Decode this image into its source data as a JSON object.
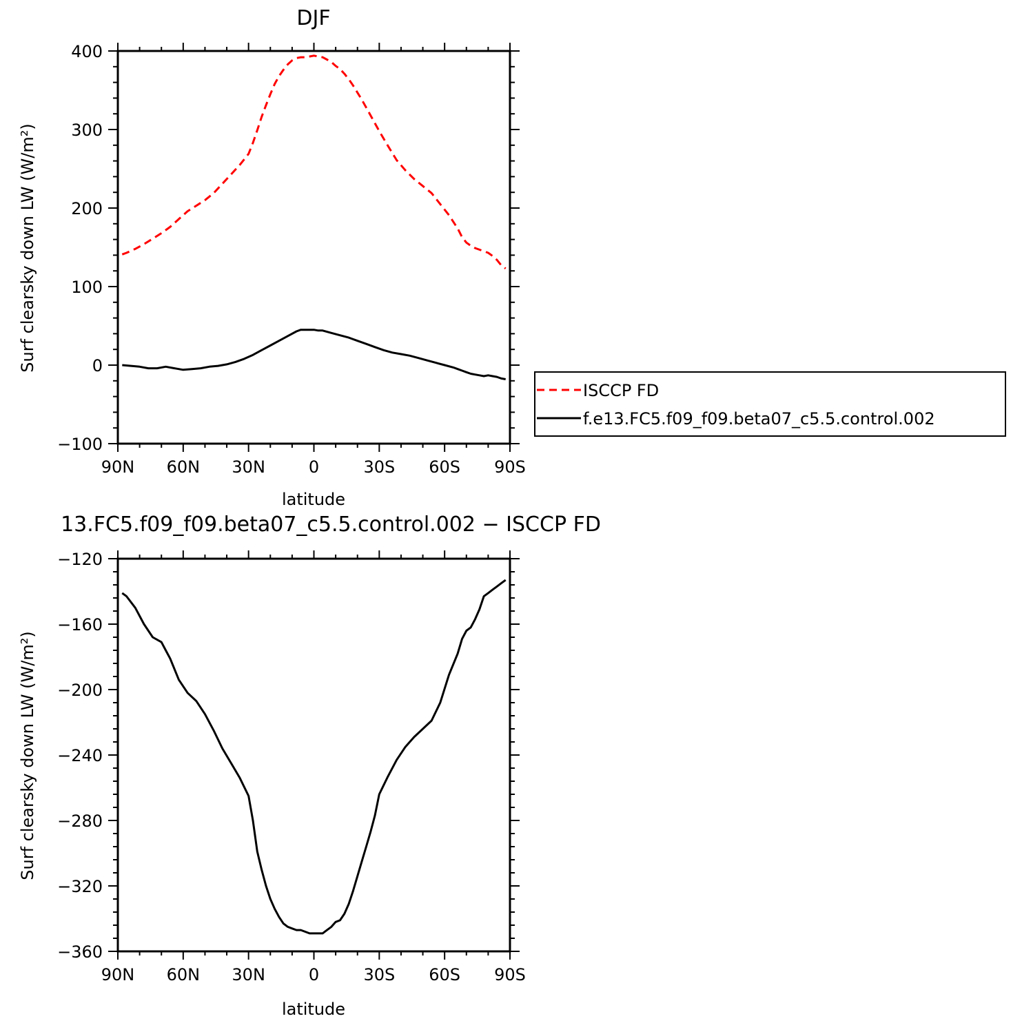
{
  "chart_data": [
    {
      "type": "line",
      "title": "DJF",
      "xlabel": "latitude",
      "ylabel": "Surf clearsky down LW (W/m²)",
      "x_tick_labels": [
        "90N",
        "60N",
        "30N",
        "0",
        "30S",
        "60S",
        "90S"
      ],
      "x_tick_values": [
        90,
        60,
        30,
        0,
        -30,
        -60,
        -90
      ],
      "xlim": [
        90,
        -90
      ],
      "ylim": [
        -100,
        400
      ],
      "y_ticks": [
        400,
        300,
        200,
        100,
        0,
        -100
      ],
      "legend_position": "right",
      "series": [
        {
          "name": "ISCCP FD",
          "color": "#ff0000",
          "style": "dashed",
          "x": [
            88,
            86,
            82,
            78,
            74,
            70,
            66,
            62,
            58,
            54,
            50,
            46,
            42,
            38,
            34,
            30,
            28,
            26,
            24,
            22,
            20,
            18,
            16,
            14,
            12,
            10,
            8,
            6,
            4,
            2,
            0,
            -2,
            -4,
            -6,
            -8,
            -10,
            -12,
            -14,
            -16,
            -18,
            -20,
            -22,
            -24,
            -26,
            -28,
            -30,
            -34,
            -38,
            -42,
            -46,
            -50,
            -54,
            -58,
            -62,
            -66,
            -68,
            -70,
            -72,
            -74,
            -76,
            -78,
            -80,
            -82,
            -84,
            -86,
            -88
          ],
          "values": [
            141,
            143,
            148,
            154,
            161,
            168,
            176,
            186,
            196,
            203,
            210,
            219,
            231,
            243,
            255,
            269,
            283,
            299,
            316,
            331,
            345,
            358,
            368,
            376,
            383,
            388,
            391,
            392,
            392,
            393,
            394,
            393,
            392,
            389,
            386,
            381,
            377,
            371,
            364,
            356,
            347,
            338,
            328,
            318,
            308,
            298,
            279,
            261,
            248,
            237,
            228,
            219,
            205,
            191,
            174,
            163,
            156,
            152,
            149,
            147,
            145,
            143,
            139,
            134,
            127,
            123
          ]
        },
        {
          "name": "f.e13.FC5.f09_f09.beta07_c5.5.control.002",
          "color": "#000000",
          "style": "solid",
          "x": [
            88,
            84,
            80,
            76,
            72,
            68,
            64,
            60,
            56,
            52,
            48,
            44,
            40,
            36,
            32,
            28,
            24,
            20,
            16,
            12,
            8,
            6,
            4,
            2,
            0,
            -2,
            -4,
            -8,
            -12,
            -16,
            -20,
            -24,
            -28,
            -32,
            -36,
            -40,
            -44,
            -48,
            -52,
            -56,
            -60,
            -64,
            -66,
            -68,
            -70,
            -72,
            -74,
            -76,
            -78,
            -80,
            -82,
            -84,
            -86,
            -88
          ],
          "values": [
            0,
            -1,
            -2,
            -4,
            -4,
            -2,
            -4,
            -6,
            -5,
            -4,
            -2,
            -1,
            1,
            4,
            8,
            13,
            19,
            25,
            31,
            37,
            43,
            45,
            45,
            45,
            45,
            44,
            44,
            41,
            38,
            35,
            31,
            27,
            23,
            19,
            16,
            14,
            12,
            9,
            6,
            3,
            0,
            -3,
            -5,
            -7,
            -9,
            -11,
            -12,
            -13,
            -14,
            -13,
            -14,
            -15,
            -17,
            -18
          ]
        }
      ]
    },
    {
      "type": "line",
      "title": "13.FC5.f09_f09.beta07_c5.5.control.002 − ISCCP FD",
      "xlabel": "latitude",
      "ylabel": "Surf clearsky down LW (W/m²)",
      "x_tick_labels": [
        "90N",
        "60N",
        "30N",
        "0",
        "30S",
        "60S",
        "90S"
      ],
      "x_tick_values": [
        90,
        60,
        30,
        0,
        -30,
        -60,
        -90
      ],
      "xlim": [
        90,
        -90
      ],
      "ylim": [
        -360,
        -120
      ],
      "y_ticks": [
        -120,
        -160,
        -200,
        -240,
        -280,
        -320,
        -360
      ],
      "series": [
        {
          "color": "#000000",
          "style": "solid",
          "x": [
            88,
            86,
            82,
            78,
            74,
            70,
            68,
            66,
            62,
            58,
            54,
            50,
            46,
            42,
            38,
            34,
            30,
            28,
            26,
            24,
            22,
            20,
            18,
            16,
            14,
            12,
            10,
            8,
            6,
            4,
            2,
            0,
            -2,
            -4,
            -6,
            -8,
            -10,
            -12,
            -14,
            -16,
            -18,
            -20,
            -22,
            -24,
            -26,
            -28,
            -30,
            -34,
            -38,
            -42,
            -46,
            -50,
            -54,
            -58,
            -62,
            -66,
            -68,
            -70,
            -72,
            -74,
            -76,
            -78,
            -80,
            -82,
            -84,
            -86,
            -88
          ],
          "values": [
            -141,
            -143,
            -150,
            -160,
            -168,
            -171,
            -176,
            -181,
            -194,
            -202,
            -207,
            -215,
            -225,
            -236,
            -245,
            -254,
            -265,
            -280,
            -299,
            -310,
            -320,
            -328,
            -334,
            -339,
            -343,
            -345,
            -346,
            -347,
            -347,
            -348,
            -349,
            -349,
            -349,
            -349,
            -347,
            -345,
            -342,
            -341,
            -337,
            -331,
            -323,
            -314,
            -305,
            -296,
            -287,
            -277,
            -264,
            -253,
            -243,
            -235,
            -229,
            -224,
            -219,
            -208,
            -191,
            -178,
            -169,
            -164,
            -162,
            -157,
            -151,
            -143,
            -141,
            -139,
            -137,
            -135,
            -133
          ]
        }
      ]
    }
  ]
}
